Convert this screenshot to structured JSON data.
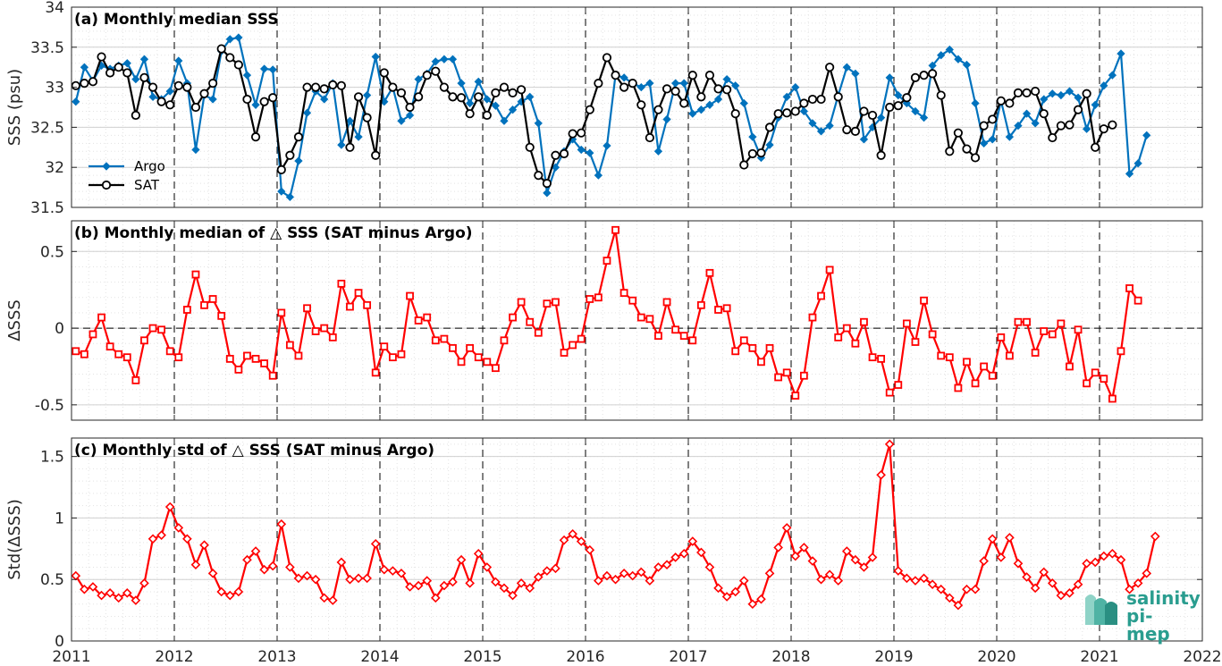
{
  "chart_data": [
    {
      "type": "line",
      "title": "(a) Monthly median SSS",
      "ylabel": "SSS (psu)",
      "xlim": [
        2011,
        2022
      ],
      "ylim": [
        31.5,
        34
      ],
      "yticks": [
        "31.5",
        "32",
        "32.5",
        "33",
        "33.5",
        "34"
      ],
      "grid": "on",
      "legend_position": "lower-left",
      "x_start": 2011,
      "series": [
        {
          "name": "Argo",
          "color": "#0072BD",
          "marker": "diamond",
          "values": [
            32.82,
            33.25,
            33.08,
            33.27,
            33.23,
            33.27,
            33.3,
            33.1,
            33.35,
            32.88,
            32.85,
            32.95,
            33.33,
            33.05,
            32.22,
            32.9,
            32.85,
            33.45,
            33.6,
            33.62,
            33.15,
            32.78,
            33.23,
            33.22,
            31.7,
            31.63,
            32.08,
            32.68,
            32.95,
            32.85,
            33.05,
            32.28,
            32.58,
            32.38,
            32.9,
            33.38,
            32.82,
            33.0,
            32.58,
            32.65,
            33.1,
            33.17,
            33.32,
            33.35,
            33.35,
            33.05,
            32.8,
            33.07,
            32.85,
            32.77,
            32.58,
            32.72,
            32.82,
            32.88,
            32.55,
            31.68,
            32.0,
            32.2,
            32.35,
            32.22,
            32.18,
            31.9,
            32.27,
            33.15,
            33.12,
            33.05,
            33.0,
            33.05,
            32.2,
            32.6,
            33.05,
            33.05,
            32.67,
            32.72,
            32.78,
            32.85,
            33.1,
            33.02,
            32.8,
            32.38,
            32.12,
            32.28,
            32.62,
            32.88,
            33.0,
            32.7,
            32.55,
            32.45,
            32.52,
            32.9,
            33.25,
            33.17,
            32.35,
            32.5,
            32.62,
            33.12,
            32.9,
            32.8,
            32.7,
            32.62,
            33.27,
            33.4,
            33.47,
            33.35,
            33.28,
            32.8,
            32.3,
            32.35,
            32.83,
            32.38,
            32.52,
            32.67,
            32.55,
            32.85,
            32.92,
            32.9,
            32.95,
            32.87,
            32.48,
            32.78,
            33.02,
            33.15,
            33.42,
            31.92,
            32.05,
            32.4
          ]
        },
        {
          "name": "SAT",
          "color": "#000000",
          "marker": "circle",
          "values": [
            33.02,
            33.05,
            33.07,
            33.38,
            33.18,
            33.25,
            33.18,
            32.65,
            33.12,
            33.0,
            32.82,
            32.78,
            33.02,
            33.0,
            32.75,
            32.92,
            33.05,
            33.48,
            33.37,
            33.28,
            32.85,
            32.38,
            32.82,
            32.87,
            31.97,
            32.15,
            32.38,
            33.0,
            33.0,
            32.98,
            33.03,
            33.02,
            32.25,
            32.88,
            32.62,
            32.15,
            33.18,
            33.0,
            32.93,
            32.75,
            32.88,
            33.15,
            33.2,
            33.0,
            32.88,
            32.87,
            32.67,
            32.88,
            32.65,
            32.93,
            33.0,
            32.93,
            32.97,
            32.25,
            31.9,
            31.8,
            32.15,
            32.17,
            32.42,
            32.43,
            32.72,
            33.05,
            33.37,
            33.15,
            33.0,
            33.05,
            32.78,
            32.37,
            32.72,
            32.98,
            32.95,
            32.8,
            33.15,
            32.88,
            33.15,
            32.98,
            32.97,
            32.67,
            32.03,
            32.17,
            32.18,
            32.5,
            32.67,
            32.68,
            32.7,
            32.8,
            32.85,
            32.85,
            33.25,
            32.88,
            32.47,
            32.45,
            32.7,
            32.65,
            32.15,
            32.75,
            32.77,
            32.87,
            33.12,
            33.15,
            33.17,
            32.9,
            32.2,
            32.43,
            32.23,
            32.12,
            32.52,
            32.6,
            32.83,
            32.8,
            32.93,
            32.93,
            32.95,
            32.67,
            32.37,
            32.52,
            32.53,
            32.72,
            32.92,
            32.25,
            32.48,
            32.53
          ]
        }
      ]
    },
    {
      "type": "line",
      "title": "(b) Monthly median of △ SSS (SAT minus Argo)",
      "ylabel": "ΔSSS",
      "xlim": [
        2011,
        2022
      ],
      "ylim": [
        -0.6,
        0.7
      ],
      "yticks": [
        "-0.5",
        "0",
        "0.5"
      ],
      "grid": "on",
      "x_start": 2011,
      "series": [
        {
          "name": "",
          "color": "#FF0000",
          "marker": "square",
          "values": [
            -0.15,
            -0.17,
            -0.04,
            0.07,
            -0.12,
            -0.17,
            -0.19,
            -0.34,
            -0.08,
            0.0,
            -0.01,
            -0.15,
            -0.19,
            0.12,
            0.35,
            0.15,
            0.19,
            0.08,
            -0.2,
            -0.27,
            -0.18,
            -0.2,
            -0.23,
            -0.31,
            0.1,
            -0.11,
            -0.18,
            0.13,
            -0.02,
            0.0,
            -0.06,
            0.29,
            0.14,
            0.23,
            0.15,
            -0.29,
            -0.12,
            -0.19,
            -0.17,
            0.21,
            0.05,
            0.07,
            -0.08,
            -0.07,
            -0.13,
            -0.22,
            -0.13,
            -0.19,
            -0.22,
            -0.26,
            -0.08,
            0.07,
            0.17,
            0.04,
            -0.03,
            0.16,
            0.17,
            -0.16,
            -0.11,
            -0.07,
            0.19,
            0.2,
            0.44,
            0.64,
            0.23,
            0.18,
            0.07,
            0.06,
            -0.05,
            0.17,
            -0.01,
            -0.05,
            -0.08,
            0.15,
            0.36,
            0.12,
            0.13,
            -0.15,
            -0.08,
            -0.13,
            -0.22,
            -0.13,
            -0.32,
            -0.29,
            -0.44,
            -0.31,
            0.07,
            0.21,
            0.38,
            -0.06,
            0.0,
            -0.1,
            0.04,
            -0.19,
            -0.2,
            -0.42,
            -0.37,
            0.03,
            -0.09,
            0.18,
            -0.04,
            -0.18,
            -0.19,
            -0.39,
            -0.22,
            -0.36,
            -0.25,
            -0.31,
            -0.06,
            -0.18,
            0.04,
            0.04,
            -0.16,
            -0.02,
            -0.04,
            0.03,
            -0.25,
            -0.01,
            -0.36,
            -0.29,
            -0.33,
            -0.46,
            -0.15,
            0.26,
            0.18
          ]
        }
      ]
    },
    {
      "type": "line",
      "title": "(c) Monthly std of △ SSS (SAT minus Argo)",
      "ylabel": "Std(ΔSSS)",
      "xlabel": "",
      "xlim": [
        2011,
        2022
      ],
      "ylim": [
        0,
        1.65
      ],
      "yticks": [
        "0",
        "0.5",
        "1",
        "1.5"
      ],
      "xticks": [
        "2011",
        "2012",
        "2013",
        "2014",
        "2015",
        "2016",
        "2017",
        "2018",
        "2019",
        "2020",
        "2021",
        "2022"
      ],
      "grid": "on",
      "x_start": 2011,
      "series": [
        {
          "name": "",
          "color": "#FF0000",
          "marker": "diamond",
          "values": [
            0.53,
            0.42,
            0.44,
            0.37,
            0.39,
            0.35,
            0.39,
            0.33,
            0.47,
            0.83,
            0.86,
            1.09,
            0.92,
            0.83,
            0.62,
            0.78,
            0.55,
            0.4,
            0.37,
            0.4,
            0.66,
            0.73,
            0.58,
            0.61,
            0.95,
            0.6,
            0.51,
            0.53,
            0.5,
            0.35,
            0.33,
            0.64,
            0.5,
            0.51,
            0.51,
            0.79,
            0.58,
            0.57,
            0.55,
            0.44,
            0.45,
            0.49,
            0.35,
            0.45,
            0.48,
            0.66,
            0.47,
            0.71,
            0.6,
            0.48,
            0.43,
            0.37,
            0.47,
            0.43,
            0.52,
            0.57,
            0.59,
            0.82,
            0.87,
            0.81,
            0.74,
            0.49,
            0.53,
            0.5,
            0.55,
            0.53,
            0.56,
            0.49,
            0.6,
            0.62,
            0.68,
            0.71,
            0.81,
            0.72,
            0.6,
            0.43,
            0.36,
            0.4,
            0.49,
            0.3,
            0.34,
            0.55,
            0.76,
            0.92,
            0.69,
            0.76,
            0.65,
            0.5,
            0.54,
            0.49,
            0.73,
            0.66,
            0.6,
            0.68,
            1.35,
            1.6,
            0.57,
            0.51,
            0.49,
            0.51,
            0.46,
            0.42,
            0.35,
            0.29,
            0.42,
            0.42,
            0.65,
            0.83,
            0.68,
            0.84,
            0.63,
            0.52,
            0.43,
            0.56,
            0.47,
            0.37,
            0.39,
            0.46,
            0.63,
            0.64,
            0.69,
            0.71,
            0.66,
            0.42,
            0.47,
            0.55,
            0.85
          ]
        }
      ]
    }
  ],
  "logo": {
    "line1": "salinity",
    "line2": "pi-mep",
    "color": "#2a9d8f"
  }
}
